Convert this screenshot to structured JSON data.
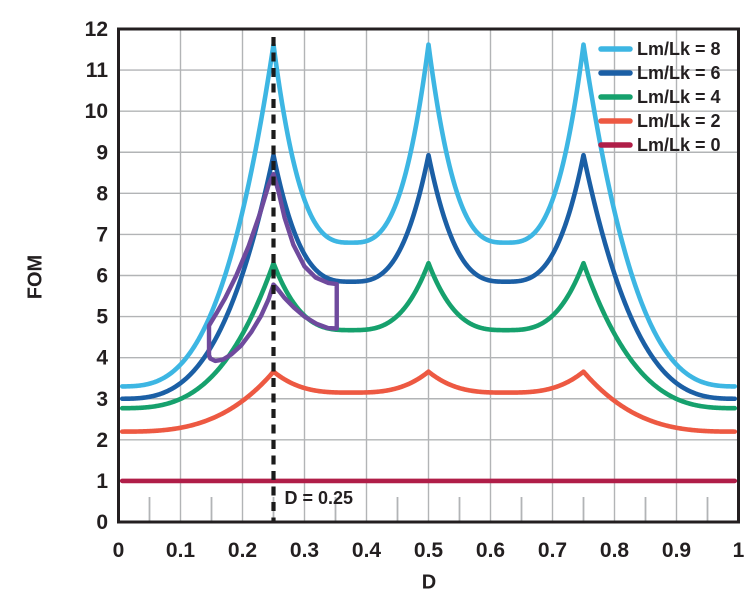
{
  "chart_data": {
    "type": "line",
    "title": "",
    "xlabel": "D",
    "ylabel": "FOM",
    "xlim": [
      0,
      1
    ],
    "ylim": [
      0,
      12
    ],
    "x_ticks": [
      0,
      0.1,
      0.2,
      0.3,
      0.4,
      0.5,
      0.6,
      0.7,
      0.8,
      0.9,
      1
    ],
    "x_tick_labels": [
      "0",
      "0.1",
      "0.2",
      "0.3",
      "0.4",
      "0.5",
      "0.6",
      "0.7",
      "0.8",
      "0.9",
      "1"
    ],
    "y_ticks": [
      0,
      1,
      2,
      3,
      4,
      5,
      6,
      7,
      8,
      9,
      10,
      11,
      12
    ],
    "y_tick_labels": [
      "0",
      "1",
      "2",
      "3",
      "4",
      "5",
      "6",
      "7",
      "8",
      "9",
      "10",
      "11",
      "12"
    ],
    "grid": true,
    "legend_position": "top-right-inside",
    "curve_shape": {
      "peaks_at": [
        0.25,
        0.5,
        0.75
      ],
      "valleys_at": [
        0.375,
        0.625
      ],
      "sharpness_exponent": 3,
      "key_d": [
        0,
        0.25,
        0.375,
        0.5,
        0.625,
        0.75,
        1
      ],
      "draw_domain": [
        0.006,
        0.994
      ]
    },
    "series": [
      {
        "name": "Lm/Lk = 8",
        "color": "#3db6e3",
        "fom_at_key_d": [
          3.3,
          11.62,
          6.8,
          11.62,
          6.8,
          11.62,
          3.3
        ]
      },
      {
        "name": "Lm/Lk = 6",
        "color": "#1b5fa5",
        "fom_at_key_d": [
          3.0,
          8.93,
          5.85,
          8.93,
          5.85,
          8.93,
          3.0
        ]
      },
      {
        "name": "Lm/Lk = 4",
        "color": "#16a16d",
        "fom_at_key_d": [
          2.77,
          6.3,
          4.67,
          6.3,
          4.67,
          6.3,
          2.77
        ]
      },
      {
        "name": "Lm/Lk = 2",
        "color": "#ed5942",
        "fom_at_key_d": [
          2.2,
          3.66,
          3.15,
          3.66,
          3.15,
          3.66,
          2.2
        ]
      },
      {
        "name": "Lm/Lk = 0",
        "color": "#b01e48",
        "fom_at_key_d": [
          1,
          1,
          1,
          1,
          1,
          1,
          1
        ]
      }
    ],
    "legend": [
      {
        "label": "Lm/Lk = 8",
        "color": "#3db6e3"
      },
      {
        "label": "Lm/Lk = 6",
        "color": "#1b5fa5"
      },
      {
        "label": "Lm/Lk = 4",
        "color": "#16a16d"
      },
      {
        "label": "Lm/Lk = 2",
        "color": "#ed5942"
      },
      {
        "label": "Lm/Lk = 0",
        "color": "#b01e48"
      }
    ],
    "annotations": {
      "vline": {
        "x": 0.25,
        "label": "D = 0.25",
        "style": "dashed",
        "color": "#1b1b1b"
      },
      "highlight_outline": {
        "color": "#6f4a9d",
        "points": [
          [
            0.146,
            4.06
          ],
          [
            0.146,
            4.78
          ],
          [
            0.158,
            5.08
          ],
          [
            0.172,
            5.45
          ],
          [
            0.19,
            6.0
          ],
          [
            0.21,
            6.72
          ],
          [
            0.228,
            7.5
          ],
          [
            0.242,
            8.2
          ],
          [
            0.25,
            8.47
          ],
          [
            0.258,
            8.05
          ],
          [
            0.268,
            7.4
          ],
          [
            0.282,
            6.75
          ],
          [
            0.3,
            6.22
          ],
          [
            0.318,
            5.95
          ],
          [
            0.338,
            5.82
          ],
          [
            0.352,
            5.79
          ],
          [
            0.352,
            4.71
          ],
          [
            0.338,
            4.72
          ],
          [
            0.32,
            4.82
          ],
          [
            0.3,
            5.0
          ],
          [
            0.283,
            5.22
          ],
          [
            0.268,
            5.45
          ],
          [
            0.256,
            5.68
          ],
          [
            0.25,
            5.78
          ],
          [
            0.242,
            5.42
          ],
          [
            0.23,
            5.02
          ],
          [
            0.214,
            4.62
          ],
          [
            0.198,
            4.3
          ],
          [
            0.182,
            4.08
          ],
          [
            0.168,
            3.95
          ],
          [
            0.156,
            3.92
          ],
          [
            0.148,
            3.98
          ]
        ]
      }
    },
    "colors": {
      "grid": "#b2b4b6",
      "axis": "#231f20",
      "text": "#231f20",
      "background": "#ffffff"
    }
  }
}
